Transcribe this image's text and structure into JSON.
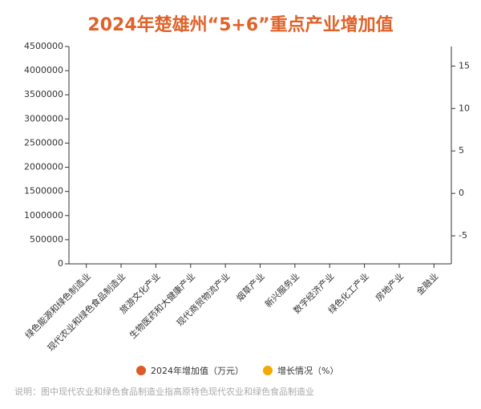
{
  "chart_data": {
    "type": "bar-line",
    "title": "2024年楚雄州“5+6”重点产业增加值",
    "categories": [
      "绿色能源和绿色制造业",
      "现代农业和绿色食品制造业",
      "旅游文化产业",
      "生物医药和大健康产业",
      "现代商贸物流产业",
      "烟草产业",
      "新兴服务业",
      "数字经济产业",
      "绿色化工产业",
      "房地产业",
      "金融业"
    ],
    "series": [
      {
        "name": "2024年增加值（万元）",
        "color": "#e05a26",
        "type": "bar",
        "values": [
          null,
          null,
          null,
          null,
          null,
          null,
          null,
          null,
          null,
          null,
          null
        ]
      },
      {
        "name": "增长情况（%）",
        "color": "#f5a800",
        "type": "line",
        "axis": "y2",
        "values": [
          null,
          null,
          null,
          null,
          null,
          null,
          null,
          null,
          null,
          null,
          null
        ]
      }
    ],
    "ylim": [
      0,
      4500000
    ],
    "yticks": [
      0,
      500000,
      1000000,
      1500000,
      2000000,
      2500000,
      3000000,
      3500000,
      4000000,
      4500000
    ],
    "y2lim": [
      -8.3,
      17.3
    ],
    "y2ticks": [
      -5,
      0,
      5,
      10,
      15
    ],
    "note": "说明：图中现代农业和绿色食品制造业指高原特色现代农业和绿色食品制造业"
  }
}
